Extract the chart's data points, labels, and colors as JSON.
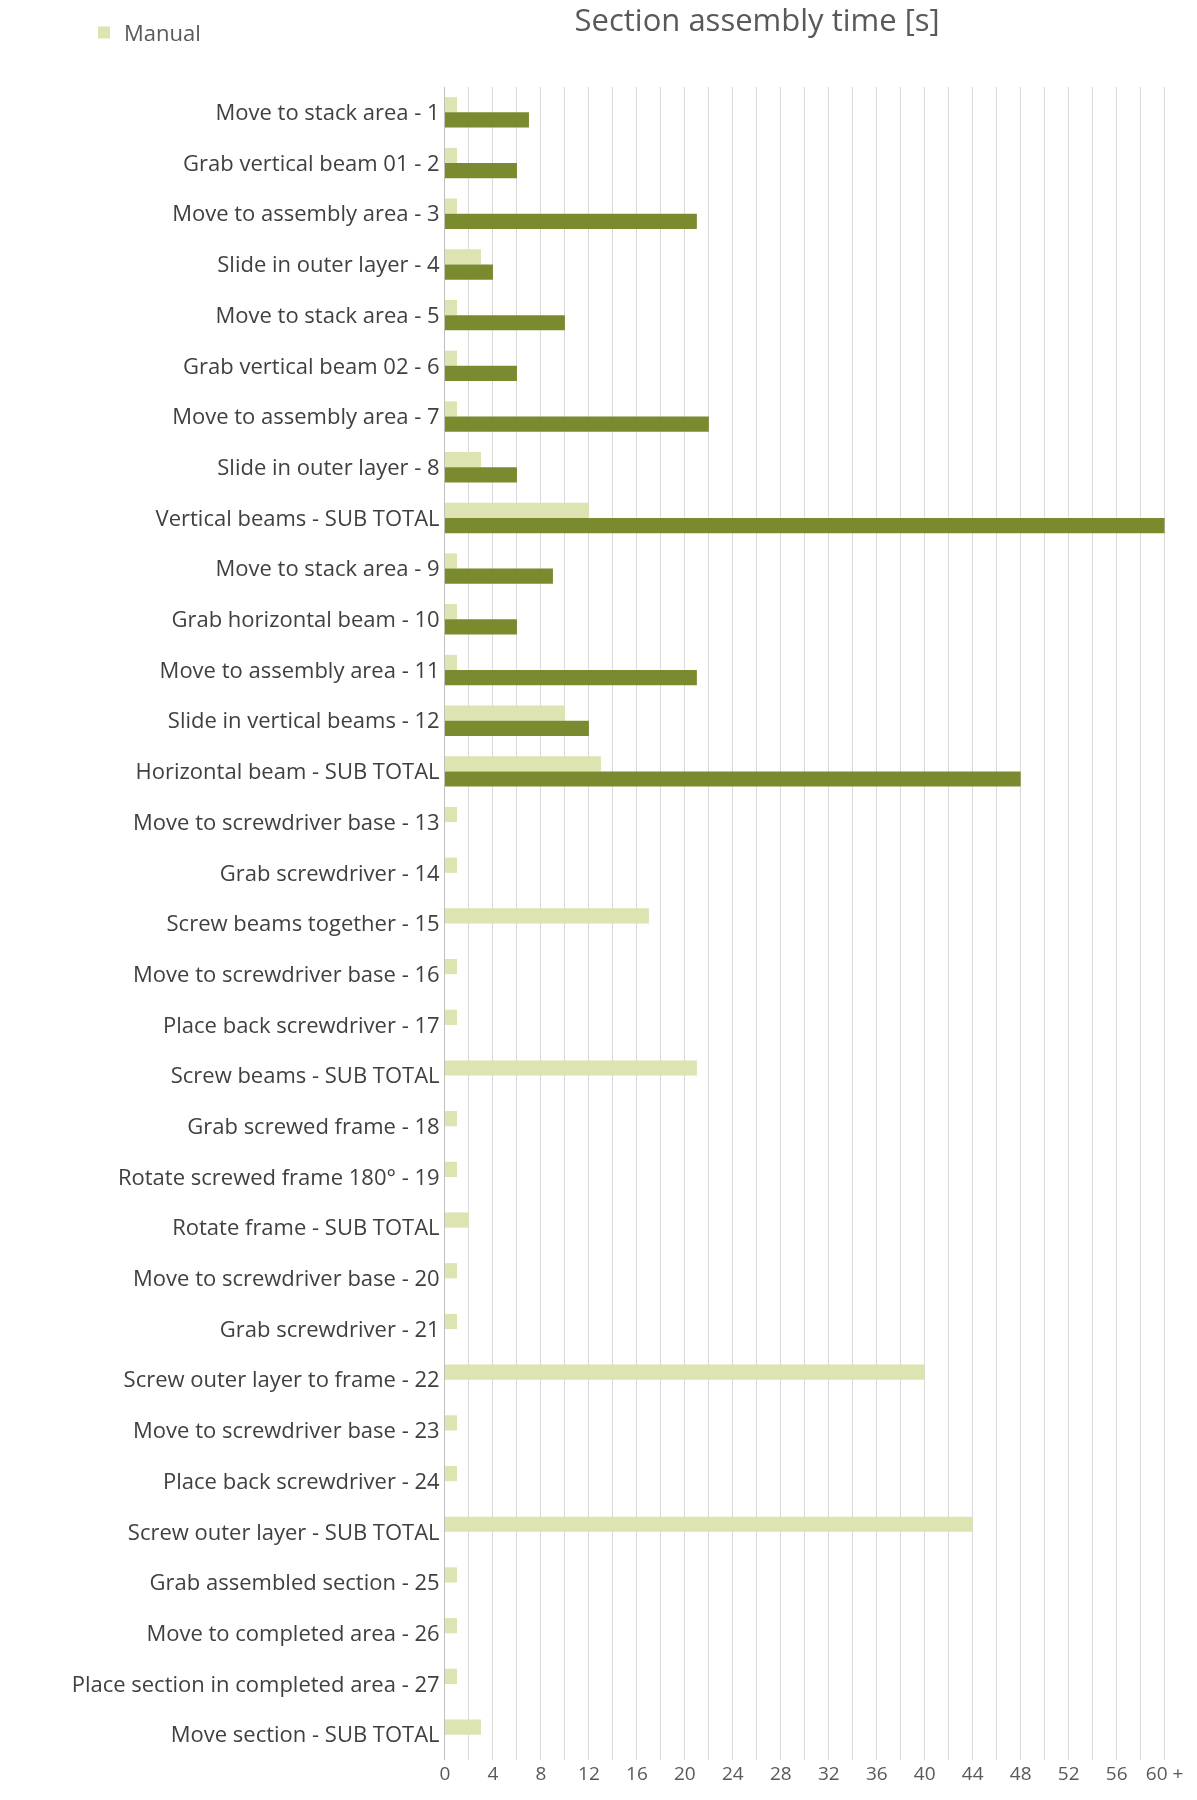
{
  "chart_data": {
    "type": "bar",
    "orientation": "horizontal",
    "title": "Section assembly time [s]",
    "categories": [
      "Move to stack area - 1",
      "Grab vertical beam 01 - 2",
      "Move to assembly area - 3",
      "Slide in outer layer - 4",
      "Move to stack area - 5",
      "Grab vertical beam 02 - 6",
      "Move to assembly area - 7",
      "Slide in outer layer - 8",
      "Vertical beams - SUB TOTAL",
      "Move to stack area - 9",
      "Grab horizontal beam - 10",
      "Move to assembly area - 11",
      "Slide in vertical beams - 12",
      "Horizontal beam - SUB TOTAL",
      "Move to screwdriver base - 13",
      "Grab screwdriver - 14",
      "Screw beams together - 15",
      "Move to screwdriver base - 16",
      "Place back screwdriver - 17",
      "Screw beams - SUB TOTAL",
      "Grab screwed frame - 18",
      "Rotate screwed frame 180° - 19",
      "Rotate frame - SUB TOTAL",
      "Move to screwdriver base - 20",
      "Grab screwdriver - 21",
      "Screw outer layer to frame - 22",
      "Move to screwdriver base - 23",
      "Place back screwdriver - 24",
      "Screw outer layer - SUB TOTAL",
      "Grab assembled section - 25",
      "Move to completed area - 26",
      "Place section in completed area - 27",
      "Move section - SUB TOTAL"
    ],
    "series": [
      {
        "name": "Manual",
        "color": "#dde3b1",
        "values": [
          1,
          1,
          1,
          3,
          1,
          1,
          1,
          3,
          12,
          1,
          1,
          1,
          10,
          13,
          1,
          1,
          17,
          1,
          1,
          21,
          1,
          1,
          2,
          1,
          1,
          40,
          1,
          1,
          44,
          1,
          1,
          1,
          3
        ]
      },
      {
        "color": "#7a8a2e",
        "values": [
          7,
          6,
          21,
          4,
          10,
          6,
          22,
          6,
          60,
          9,
          6,
          21,
          12,
          48,
          null,
          null,
          null,
          null,
          null,
          null,
          null,
          null,
          null,
          null,
          null,
          null,
          null,
          null,
          null,
          null,
          null,
          null,
          null
        ]
      }
    ],
    "xlim": [
      0,
      60.2
    ],
    "xticks": [
      0,
      {
        "value": 2,
        "label": null
      },
      4,
      {
        "value": 6,
        "label": null
      },
      8,
      {
        "value": 10,
        "label": null
      },
      12,
      {
        "value": 14,
        "label": null
      },
      16,
      {
        "value": 18,
        "label": null
      },
      20,
      {
        "value": 22,
        "label": null
      },
      24,
      {
        "value": 26,
        "label": null
      },
      28,
      {
        "value": 30,
        "label": null
      },
      32,
      {
        "value": 34,
        "label": null
      },
      36,
      {
        "value": 38,
        "label": null
      },
      40,
      {
        "value": 42,
        "label": null
      },
      44,
      {
        "value": 46,
        "label": null
      },
      48,
      {
        "value": 50,
        "label": null
      },
      52,
      {
        "value": 54,
        "label": null
      },
      56,
      {
        "value": 58,
        "label": null
      },
      {
        "value": 60,
        "label": "60 +"
      }
    ],
    "grid": "x",
    "legend": "top left"
  }
}
